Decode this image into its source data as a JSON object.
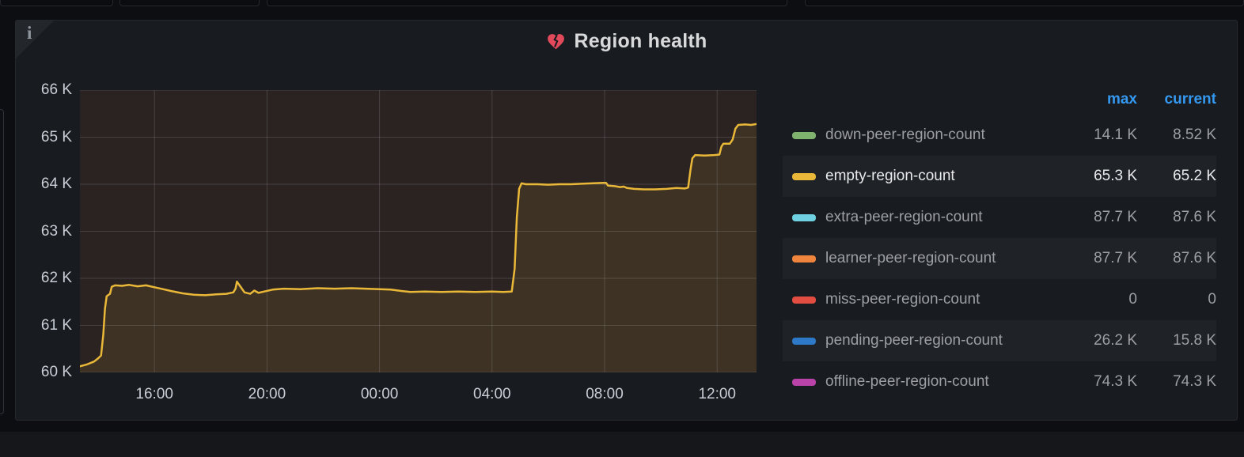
{
  "panel": {
    "title": "Region health",
    "title_icon": "broken-heart",
    "info_corner_glyph": "i",
    "bg": "#181b1f"
  },
  "legend": {
    "columns": [
      "max",
      "current"
    ],
    "header_color": "#3598f0",
    "rows": [
      {
        "label": "down-peer-region-count",
        "color": "#7EB26D",
        "max": "14.1 K",
        "current": "8.52 K",
        "striped": false,
        "highlight": false
      },
      {
        "label": "empty-region-count",
        "color": "#EAB839",
        "max": "65.3 K",
        "current": "65.2 K",
        "striped": true,
        "highlight": true
      },
      {
        "label": "extra-peer-region-count",
        "color": "#6ED0E0",
        "max": "87.7 K",
        "current": "87.6 K",
        "striped": false,
        "highlight": false
      },
      {
        "label": "learner-peer-region-count",
        "color": "#EF843C",
        "max": "87.7 K",
        "current": "87.6 K",
        "striped": true,
        "highlight": false
      },
      {
        "label": "miss-peer-region-count",
        "color": "#E24D42",
        "max": "0",
        "current": "0",
        "striped": false,
        "highlight": false
      },
      {
        "label": "pending-peer-region-count",
        "color": "#2e78c8",
        "max": "26.2 K",
        "current": "15.8 K",
        "striped": true,
        "highlight": false
      },
      {
        "label": "offline-peer-region-count",
        "color": "#BA43A9",
        "max": "74.3 K",
        "current": "74.3 K",
        "striped": false,
        "highlight": false
      }
    ]
  },
  "chart_data": {
    "type": "line",
    "title": "Region health",
    "x_unit": "time-of-day-hours",
    "x_range": [
      13.35,
      37.4
    ],
    "y_range": [
      60000,
      66000
    ],
    "grid": true,
    "legend_position": "right",
    "plot_bg": "#2a2321",
    "grid_color": "rgba(204,204,220,0.18)",
    "x_ticks": [
      {
        "value": 16,
        "label": "16:00"
      },
      {
        "value": 20,
        "label": "20:00"
      },
      {
        "value": 24,
        "label": "00:00"
      },
      {
        "value": 28,
        "label": "04:00"
      },
      {
        "value": 32,
        "label": "08:00"
      },
      {
        "value": 36,
        "label": "12:00"
      }
    ],
    "y_ticks": [
      {
        "value": 60000,
        "label": "60 K"
      },
      {
        "value": 61000,
        "label": "61 K"
      },
      {
        "value": 62000,
        "label": "62 K"
      },
      {
        "value": 63000,
        "label": "63 K"
      },
      {
        "value": 64000,
        "label": "64 K"
      },
      {
        "value": 65000,
        "label": "65 K"
      },
      {
        "value": 66000,
        "label": "66 K"
      }
    ],
    "series": [
      {
        "name": "empty-region-count",
        "color": "#EAB839",
        "fill_opacity": 0.1,
        "points": [
          [
            13.35,
            60130
          ],
          [
            13.6,
            60170
          ],
          [
            13.85,
            60230
          ],
          [
            14.0,
            60300
          ],
          [
            14.1,
            60360
          ],
          [
            14.18,
            60800
          ],
          [
            14.24,
            61350
          ],
          [
            14.3,
            61620
          ],
          [
            14.42,
            61670
          ],
          [
            14.48,
            61820
          ],
          [
            14.6,
            61850
          ],
          [
            14.85,
            61840
          ],
          [
            15.1,
            61860
          ],
          [
            15.4,
            61830
          ],
          [
            15.7,
            61850
          ],
          [
            16.0,
            61810
          ],
          [
            16.3,
            61770
          ],
          [
            16.6,
            61730
          ],
          [
            17.0,
            61680
          ],
          [
            17.4,
            61650
          ],
          [
            17.8,
            61640
          ],
          [
            18.2,
            61660
          ],
          [
            18.55,
            61670
          ],
          [
            18.8,
            61700
          ],
          [
            18.88,
            61780
          ],
          [
            18.93,
            61930
          ],
          [
            19.05,
            61830
          ],
          [
            19.2,
            61700
          ],
          [
            19.4,
            61670
          ],
          [
            19.55,
            61740
          ],
          [
            19.7,
            61690
          ],
          [
            19.9,
            61720
          ],
          [
            20.2,
            61760
          ],
          [
            20.6,
            61780
          ],
          [
            21.2,
            61770
          ],
          [
            21.8,
            61790
          ],
          [
            22.4,
            61780
          ],
          [
            23.0,
            61790
          ],
          [
            23.5,
            61780
          ],
          [
            24.0,
            61770
          ],
          [
            24.4,
            61760
          ],
          [
            24.8,
            61730
          ],
          [
            25.1,
            61710
          ],
          [
            25.6,
            61720
          ],
          [
            26.2,
            61710
          ],
          [
            26.8,
            61720
          ],
          [
            27.4,
            61710
          ],
          [
            28.0,
            61720
          ],
          [
            28.4,
            61710
          ],
          [
            28.7,
            61720
          ],
          [
            28.8,
            62200
          ],
          [
            28.88,
            63300
          ],
          [
            28.96,
            63900
          ],
          [
            29.05,
            64020
          ],
          [
            29.2,
            64000
          ],
          [
            29.6,
            64000
          ],
          [
            30.0,
            63990
          ],
          [
            30.4,
            64000
          ],
          [
            30.8,
            64000
          ],
          [
            31.2,
            64010
          ],
          [
            31.6,
            64020
          ],
          [
            31.95,
            64030
          ],
          [
            32.05,
            64030
          ],
          [
            32.12,
            63970
          ],
          [
            32.35,
            63960
          ],
          [
            32.55,
            63940
          ],
          [
            32.68,
            63950
          ],
          [
            32.8,
            63920
          ],
          [
            33.05,
            63900
          ],
          [
            33.4,
            63890
          ],
          [
            33.8,
            63890
          ],
          [
            34.2,
            63900
          ],
          [
            34.55,
            63920
          ],
          [
            34.85,
            63910
          ],
          [
            34.97,
            63930
          ],
          [
            35.05,
            64300
          ],
          [
            35.12,
            64550
          ],
          [
            35.22,
            64620
          ],
          [
            35.55,
            64610
          ],
          [
            35.9,
            64620
          ],
          [
            36.08,
            64630
          ],
          [
            36.15,
            64800
          ],
          [
            36.22,
            64860
          ],
          [
            36.45,
            64860
          ],
          [
            36.55,
            64950
          ],
          [
            36.65,
            65180
          ],
          [
            36.75,
            65260
          ],
          [
            37.0,
            65270
          ],
          [
            37.2,
            65260
          ],
          [
            37.4,
            65280
          ]
        ]
      }
    ]
  }
}
